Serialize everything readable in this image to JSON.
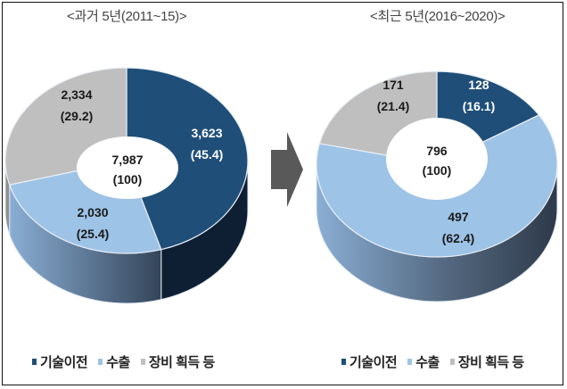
{
  "colors": {
    "tech_transfer": "#1f4e79",
    "tech_transfer_side": "#0f1f33",
    "export": "#9dc3e6",
    "export_side_light": "#8aaed4",
    "export_side_dark": "#3a4a5e",
    "equipment": "#bfbfbf",
    "arrow": "#595959",
    "label_dark": "#1a1a1a",
    "label_light": "#ffffff"
  },
  "legend": [
    {
      "key": "tech_transfer",
      "label": "기술이전"
    },
    {
      "key": "export",
      "label": "수출"
    },
    {
      "key": "equipment",
      "label": "장비 획득 등"
    }
  ],
  "chart_data": [
    {
      "type": "pie",
      "subtype": "3d-donut",
      "title": "<과거 5년(2011~15)>",
      "center_label": {
        "value": "7,987",
        "percent": "(100)"
      },
      "categories": [
        "기술이전",
        "수출",
        "장비 획득 등"
      ],
      "values": [
        3623,
        2030,
        2334
      ],
      "value_labels": [
        "3,623",
        "2,030",
        "2,334"
      ],
      "percents": [
        45.4,
        25.4,
        29.2
      ],
      "percent_labels": [
        "(45.4)",
        "(25.4)",
        "(29.2)"
      ],
      "total": 7987,
      "legend_position": "bottom"
    },
    {
      "type": "pie",
      "subtype": "3d-donut",
      "title": "<최근 5년(2016~2020)>",
      "center_label": {
        "value": "796",
        "percent": "(100)"
      },
      "categories": [
        "기술이전",
        "수출",
        "장비 획득 등"
      ],
      "values": [
        128,
        497,
        171
      ],
      "value_labels": [
        "128",
        "497",
        "171"
      ],
      "percents": [
        16.1,
        62.4,
        21.4
      ],
      "percent_labels": [
        "(16.1)",
        "(62.4)",
        "(21.4)"
      ],
      "total": 796,
      "legend_position": "bottom"
    }
  ]
}
